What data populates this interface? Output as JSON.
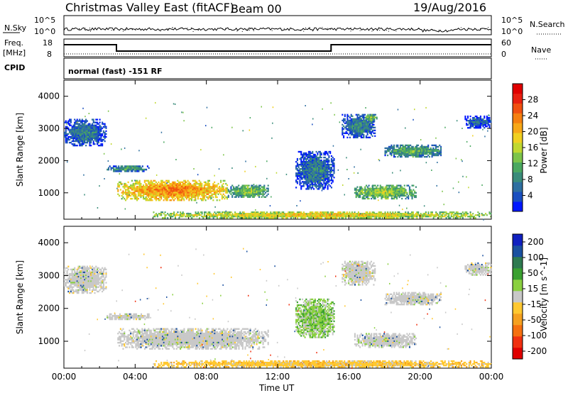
{
  "header": {
    "title": "Christmas Valley East (fitACF)",
    "beam": "Beam 00",
    "date": "19/Aug/2016"
  },
  "noise_panel": {
    "left_label": "N.Sky",
    "right_label": "N.Search",
    "left_ticks": [
      "10^5",
      "10^0"
    ],
    "right_ticks": [
      "10^5",
      "10^0"
    ]
  },
  "freq_panel": {
    "left_label_1": "Freq.",
    "left_label_2": "[MHz]",
    "right_label": "Nave",
    "left_ticks": [
      "18",
      "8"
    ],
    "right_ticks": [
      "60",
      "0"
    ],
    "freq_steps": [
      {
        "start_hour": 0,
        "end_hour": 2.95,
        "level": "high"
      },
      {
        "start_hour": 2.95,
        "end_hour": 15.0,
        "level": "low"
      },
      {
        "start_hour": 15.0,
        "end_hour": 24,
        "level": "high"
      }
    ]
  },
  "cpid_panel": {
    "label": "CPID",
    "text": "normal (fast) -151 RF"
  },
  "chart_data": [
    {
      "type": "heatmap",
      "name": "Power",
      "ylabel": "Slant Range [km]",
      "xlabel": "",
      "x_range_hours": [
        0,
        24
      ],
      "ylim": [
        180,
        4500
      ],
      "y_ticks": [
        1000,
        2000,
        3000,
        4000
      ],
      "x_ticks": [
        "00:00",
        "04:00",
        "08:00",
        "12:00",
        "16:00",
        "20:00",
        "00:00"
      ],
      "colorbar": {
        "label": "Power [dB]",
        "ticks": [
          4,
          8,
          12,
          16,
          20,
          24,
          28
        ],
        "min": 0,
        "max": 32,
        "colors": [
          "#0018ff",
          "#1a4fc0",
          "#2e6fa0",
          "#3a8c7a",
          "#4aa860",
          "#7cc44a",
          "#c0d830",
          "#f0d020",
          "#f7a818",
          "#f58010",
          "#f05010",
          "#e82010",
          "#e00000"
        ]
      },
      "regions": [
        {
          "t0": 0.0,
          "t1": 2.4,
          "r0": 2450,
          "r1": 3300,
          "level": 9,
          "kind": "power-low"
        },
        {
          "t0": 2.4,
          "t1": 4.8,
          "r0": 1650,
          "r1": 1850,
          "level": 12,
          "kind": "power-mid"
        },
        {
          "t0": 3.0,
          "t1": 9.2,
          "r0": 750,
          "r1": 1400,
          "level": 24,
          "kind": "power-high"
        },
        {
          "t0": 9.2,
          "t1": 11.5,
          "r0": 850,
          "r1": 1250,
          "level": 15,
          "kind": "power-mid"
        },
        {
          "t0": 5.0,
          "t1": 24.0,
          "r0": 200,
          "r1": 420,
          "level": 20,
          "kind": "power-band"
        },
        {
          "t0": 13.0,
          "t1": 15.2,
          "r0": 1100,
          "r1": 2300,
          "level": 9,
          "kind": "power-low"
        },
        {
          "t0": 15.6,
          "t1": 17.5,
          "r0": 2700,
          "r1": 3450,
          "level": 10,
          "kind": "power-low"
        },
        {
          "t0": 16.9,
          "t1": 17.6,
          "r0": 3200,
          "r1": 3450,
          "level": 15,
          "kind": "power-mid"
        },
        {
          "t0": 16.3,
          "t1": 19.8,
          "r0": 800,
          "r1": 1250,
          "level": 16,
          "kind": "power-mid"
        },
        {
          "t0": 18.0,
          "t1": 21.2,
          "r0": 2100,
          "r1": 2500,
          "level": 13,
          "kind": "power-mid"
        },
        {
          "t0": 22.5,
          "t1": 24.0,
          "r0": 3000,
          "r1": 3400,
          "level": 8,
          "kind": "power-low"
        }
      ]
    },
    {
      "type": "heatmap",
      "name": "Velocity",
      "ylabel": "Slant Range [km]",
      "xlabel": "Time UT",
      "x_range_hours": [
        0,
        24
      ],
      "ylim": [
        180,
        4500
      ],
      "y_ticks": [
        1000,
        2000,
        3000,
        4000
      ],
      "x_ticks": [
        "00:00",
        "04:00",
        "08:00",
        "12:00",
        "16:00",
        "20:00",
        "00:00"
      ],
      "colorbar": {
        "label": "Velocity [m s^-1]",
        "ticks": [
          "200",
          "100",
          "50",
          "15",
          "-15",
          "-50",
          "-100",
          "-200"
        ],
        "min": -250,
        "max": 250,
        "colors": [
          "#e00000",
          "#f03010",
          "#f57010",
          "#f5a020",
          "#ffc830",
          "#c8c8c8",
          "#8ad040",
          "#3aa030",
          "#2e7a50",
          "#1a50a0",
          "#1020c0"
        ]
      },
      "regions": [
        {
          "t0": 0.0,
          "t1": 2.4,
          "r0": 2450,
          "r1": 3300,
          "level": 0,
          "kind": "vel-grey"
        },
        {
          "t0": 2.4,
          "t1": 4.8,
          "r0": 1650,
          "r1": 1850,
          "level": 0,
          "kind": "vel-grey"
        },
        {
          "t0": 3.0,
          "t1": 11.5,
          "r0": 750,
          "r1": 1400,
          "level": 0,
          "kind": "vel-grey"
        },
        {
          "t0": 5.0,
          "t1": 24.0,
          "r0": 200,
          "r1": 420,
          "level": -40,
          "kind": "vel-orange"
        },
        {
          "t0": 13.0,
          "t1": 15.2,
          "r0": 1100,
          "r1": 2300,
          "level": 20,
          "kind": "vel-green"
        },
        {
          "t0": 15.6,
          "t1": 17.5,
          "r0": 2700,
          "r1": 3450,
          "level": 0,
          "kind": "vel-grey"
        },
        {
          "t0": 16.3,
          "t1": 19.8,
          "r0": 800,
          "r1": 1250,
          "level": 0,
          "kind": "vel-grey"
        },
        {
          "t0": 18.0,
          "t1": 21.2,
          "r0": 2100,
          "r1": 2500,
          "level": 0,
          "kind": "vel-grey"
        },
        {
          "t0": 22.5,
          "t1": 24.0,
          "r0": 3000,
          "r1": 3400,
          "level": 0,
          "kind": "vel-grey"
        }
      ]
    }
  ]
}
